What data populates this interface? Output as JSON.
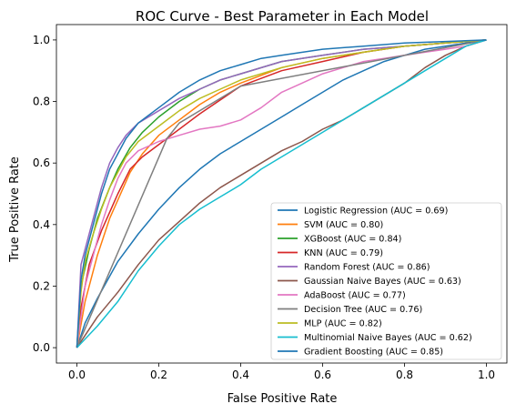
{
  "chart_data": {
    "type": "line",
    "title": "ROC Curve - Best Parameter in Each Model",
    "xlabel": "False Positive Rate",
    "ylabel": "True Positive Rate",
    "xlim": [
      -0.05,
      1.05
    ],
    "ylim": [
      -0.05,
      1.05
    ],
    "x_ticks": [
      "0.0",
      "0.2",
      "0.4",
      "0.6",
      "0.8",
      "1.0"
    ],
    "y_ticks": [
      "0.0",
      "0.2",
      "0.4",
      "0.6",
      "0.8",
      "1.0"
    ],
    "grid": false,
    "legend_position": "lower-right",
    "series": [
      {
        "name": "Logistic Regression (AUC = 0.69)",
        "color": "#1f77b4",
        "x": [
          0,
          0.02,
          0.05,
          0.1,
          0.15,
          0.2,
          0.25,
          0.3,
          0.35,
          0.4,
          0.45,
          0.5,
          0.55,
          0.6,
          0.65,
          0.7,
          0.75,
          0.8,
          0.85,
          0.9,
          0.95,
          1.0
        ],
        "y": [
          0,
          0.08,
          0.16,
          0.28,
          0.37,
          0.45,
          0.52,
          0.58,
          0.63,
          0.67,
          0.71,
          0.75,
          0.79,
          0.83,
          0.87,
          0.9,
          0.93,
          0.95,
          0.97,
          0.98,
          0.99,
          1.0
        ]
      },
      {
        "name": "SVM (AUC = 0.80)",
        "color": "#ff7f0e",
        "x": [
          0,
          0.02,
          0.05,
          0.08,
          0.1,
          0.13,
          0.16,
          0.2,
          0.25,
          0.3,
          0.35,
          0.4,
          0.5,
          0.6,
          0.7,
          0.8,
          0.9,
          1.0
        ],
        "y": [
          0,
          0.15,
          0.3,
          0.42,
          0.48,
          0.57,
          0.63,
          0.69,
          0.74,
          0.79,
          0.83,
          0.86,
          0.91,
          0.94,
          0.96,
          0.98,
          0.99,
          1.0
        ]
      },
      {
        "name": "XGBoost (AUC = 0.84)",
        "color": "#2ca02c",
        "x": [
          0,
          0.01,
          0.03,
          0.05,
          0.08,
          0.1,
          0.13,
          0.16,
          0.2,
          0.25,
          0.3,
          0.35,
          0.4,
          0.5,
          0.6,
          0.7,
          0.8,
          0.9,
          1.0
        ],
        "y": [
          0,
          0.2,
          0.32,
          0.42,
          0.52,
          0.58,
          0.65,
          0.7,
          0.75,
          0.8,
          0.84,
          0.87,
          0.89,
          0.93,
          0.95,
          0.97,
          0.98,
          0.99,
          1.0
        ]
      },
      {
        "name": "KNN (AUC = 0.79)",
        "color": "#d62728",
        "x": [
          0,
          0.01,
          0.03,
          0.06,
          0.1,
          0.13,
          0.16,
          0.2,
          0.3,
          0.4,
          0.5,
          0.6,
          0.7,
          0.8,
          0.9,
          1.0
        ],
        "y": [
          0,
          0.13,
          0.27,
          0.38,
          0.5,
          0.58,
          0.62,
          0.66,
          0.76,
          0.85,
          0.9,
          0.93,
          0.96,
          0.98,
          0.99,
          1.0
        ]
      },
      {
        "name": "Random Forest (AUC = 0.86)",
        "color": "#9467bd",
        "x": [
          0,
          0.01,
          0.02,
          0.04,
          0.06,
          0.08,
          0.1,
          0.12,
          0.15,
          0.2,
          0.25,
          0.3,
          0.35,
          0.4,
          0.5,
          0.6,
          0.7,
          0.8,
          0.9,
          1.0
        ],
        "y": [
          0,
          0.27,
          0.32,
          0.42,
          0.52,
          0.6,
          0.65,
          0.69,
          0.73,
          0.77,
          0.81,
          0.84,
          0.87,
          0.89,
          0.93,
          0.95,
          0.97,
          0.98,
          0.99,
          1.0
        ]
      },
      {
        "name": "Gaussian Naive Bayes (AUC = 0.63)",
        "color": "#8c564b",
        "x": [
          0,
          0.05,
          0.1,
          0.15,
          0.2,
          0.25,
          0.3,
          0.35,
          0.4,
          0.45,
          0.5,
          0.55,
          0.6,
          0.65,
          0.7,
          0.75,
          0.8,
          0.85,
          0.9,
          0.95,
          1.0
        ],
        "y": [
          0,
          0.1,
          0.18,
          0.27,
          0.35,
          0.41,
          0.47,
          0.52,
          0.56,
          0.6,
          0.64,
          0.67,
          0.71,
          0.74,
          0.78,
          0.82,
          0.86,
          0.91,
          0.95,
          0.98,
          1.0
        ]
      },
      {
        "name": "AdaBoost (AUC = 0.77)",
        "color": "#e377c2",
        "x": [
          0,
          0.02,
          0.04,
          0.06,
          0.08,
          0.1,
          0.12,
          0.15,
          0.2,
          0.25,
          0.3,
          0.35,
          0.4,
          0.45,
          0.5,
          0.55,
          0.6,
          0.65,
          0.7,
          0.75,
          0.8,
          0.85,
          0.9,
          0.95,
          1.0
        ],
        "y": [
          0,
          0.2,
          0.3,
          0.4,
          0.48,
          0.55,
          0.6,
          0.64,
          0.67,
          0.69,
          0.71,
          0.72,
          0.74,
          0.78,
          0.83,
          0.86,
          0.89,
          0.91,
          0.93,
          0.94,
          0.95,
          0.96,
          0.97,
          0.98,
          1.0
        ]
      },
      {
        "name": "Decision Tree (AUC = 0.76)",
        "color": "#7f7f7f",
        "x": [
          0,
          0.22,
          0.25,
          0.4,
          1.0
        ],
        "y": [
          0,
          0.68,
          0.73,
          0.85,
          1.0
        ]
      },
      {
        "name": "MLP (AUC = 0.82)",
        "color": "#bcbd22",
        "x": [
          0,
          0.01,
          0.02,
          0.04,
          0.06,
          0.08,
          0.1,
          0.12,
          0.15,
          0.2,
          0.25,
          0.3,
          0.35,
          0.4,
          0.5,
          0.6,
          0.7,
          0.8,
          0.9,
          1.0
        ],
        "y": [
          0,
          0.18,
          0.28,
          0.37,
          0.45,
          0.52,
          0.57,
          0.62,
          0.67,
          0.72,
          0.77,
          0.81,
          0.84,
          0.87,
          0.91,
          0.94,
          0.96,
          0.98,
          0.99,
          1.0
        ]
      },
      {
        "name": "Multinomial Naive Bayes (AUC = 0.62)",
        "color": "#17becf",
        "x": [
          0,
          0.05,
          0.1,
          0.15,
          0.2,
          0.25,
          0.3,
          0.35,
          0.4,
          0.45,
          0.5,
          0.55,
          0.6,
          0.65,
          0.7,
          0.75,
          0.8,
          0.85,
          0.9,
          0.95,
          1.0
        ],
        "y": [
          0,
          0.07,
          0.15,
          0.25,
          0.33,
          0.4,
          0.45,
          0.49,
          0.53,
          0.58,
          0.62,
          0.66,
          0.7,
          0.74,
          0.78,
          0.82,
          0.86,
          0.9,
          0.94,
          0.98,
          1.0
        ]
      },
      {
        "name": "Gradient Boosting (AUC = 0.85)",
        "color": "#1f77b4",
        "x": [
          0,
          0.01,
          0.02,
          0.04,
          0.06,
          0.08,
          0.1,
          0.12,
          0.15,
          0.2,
          0.25,
          0.3,
          0.35,
          0.4,
          0.45,
          0.5,
          0.6,
          0.7,
          0.8,
          0.9,
          1.0
        ],
        "y": [
          0,
          0.22,
          0.3,
          0.4,
          0.5,
          0.58,
          0.63,
          0.68,
          0.73,
          0.78,
          0.83,
          0.87,
          0.9,
          0.92,
          0.94,
          0.95,
          0.97,
          0.98,
          0.99,
          0.995,
          1.0
        ]
      }
    ]
  }
}
